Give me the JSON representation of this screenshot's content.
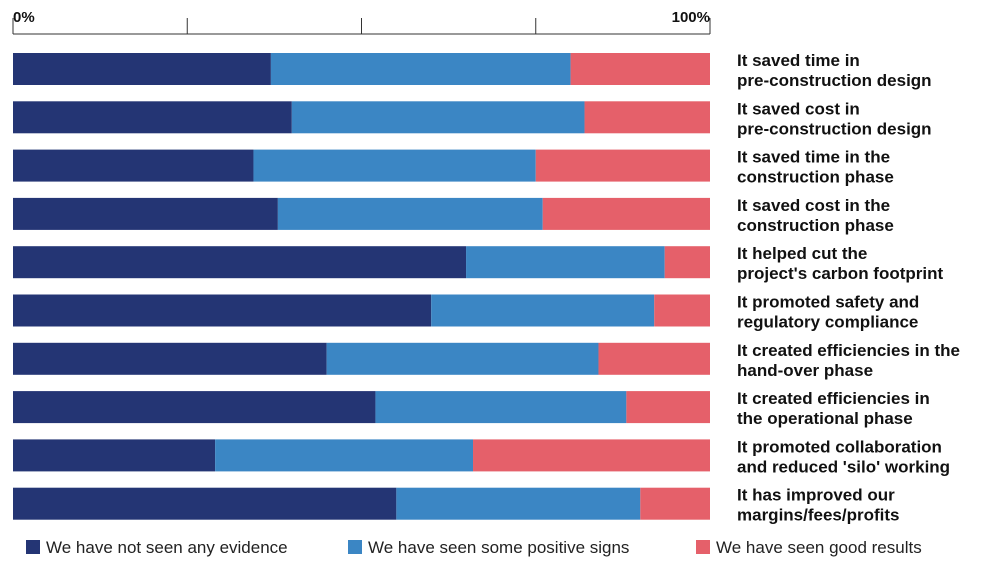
{
  "chart_data": {
    "type": "bar",
    "orientation": "horizontal",
    "stacked": true,
    "xlim": [
      0,
      100
    ],
    "x_ticks": [
      0,
      25,
      50,
      75,
      100
    ],
    "x_tick_labels": [
      "0%",
      "",
      "",
      "",
      "100%"
    ],
    "categories": [
      [
        "It saved time in",
        "pre-construction design"
      ],
      [
        "It saved cost in",
        "pre-construction design"
      ],
      [
        "It saved time in the",
        "construction phase"
      ],
      [
        "It saved cost in the",
        "construction phase"
      ],
      [
        "It helped cut the",
        "project's carbon footprint"
      ],
      [
        "It promoted safety and",
        "regulatory compliance"
      ],
      [
        "It created efficiencies in the",
        "hand-over phase"
      ],
      [
        "It created efficiencies in",
        "the operational phase"
      ],
      [
        "It promoted collaboration",
        "and reduced 'silo' working"
      ],
      [
        "It has improved our",
        "margins/fees/profits"
      ]
    ],
    "series": [
      {
        "name": "We have not seen any evidence",
        "color": "#243574",
        "values": [
          37,
          40,
          34.5,
          38,
          65,
          60,
          45,
          52,
          29,
          55
        ]
      },
      {
        "name": "We have seen some positive signs",
        "color": "#3b86c4",
        "values": [
          43,
          42,
          40.5,
          38,
          28.5,
          32,
          39,
          36,
          37,
          35
        ]
      },
      {
        "name": "We have seen good results",
        "color": "#e5606a",
        "values": [
          20,
          18,
          25,
          24,
          6.5,
          8,
          16,
          12,
          34,
          10
        ]
      }
    ],
    "legend_position": "bottom"
  }
}
